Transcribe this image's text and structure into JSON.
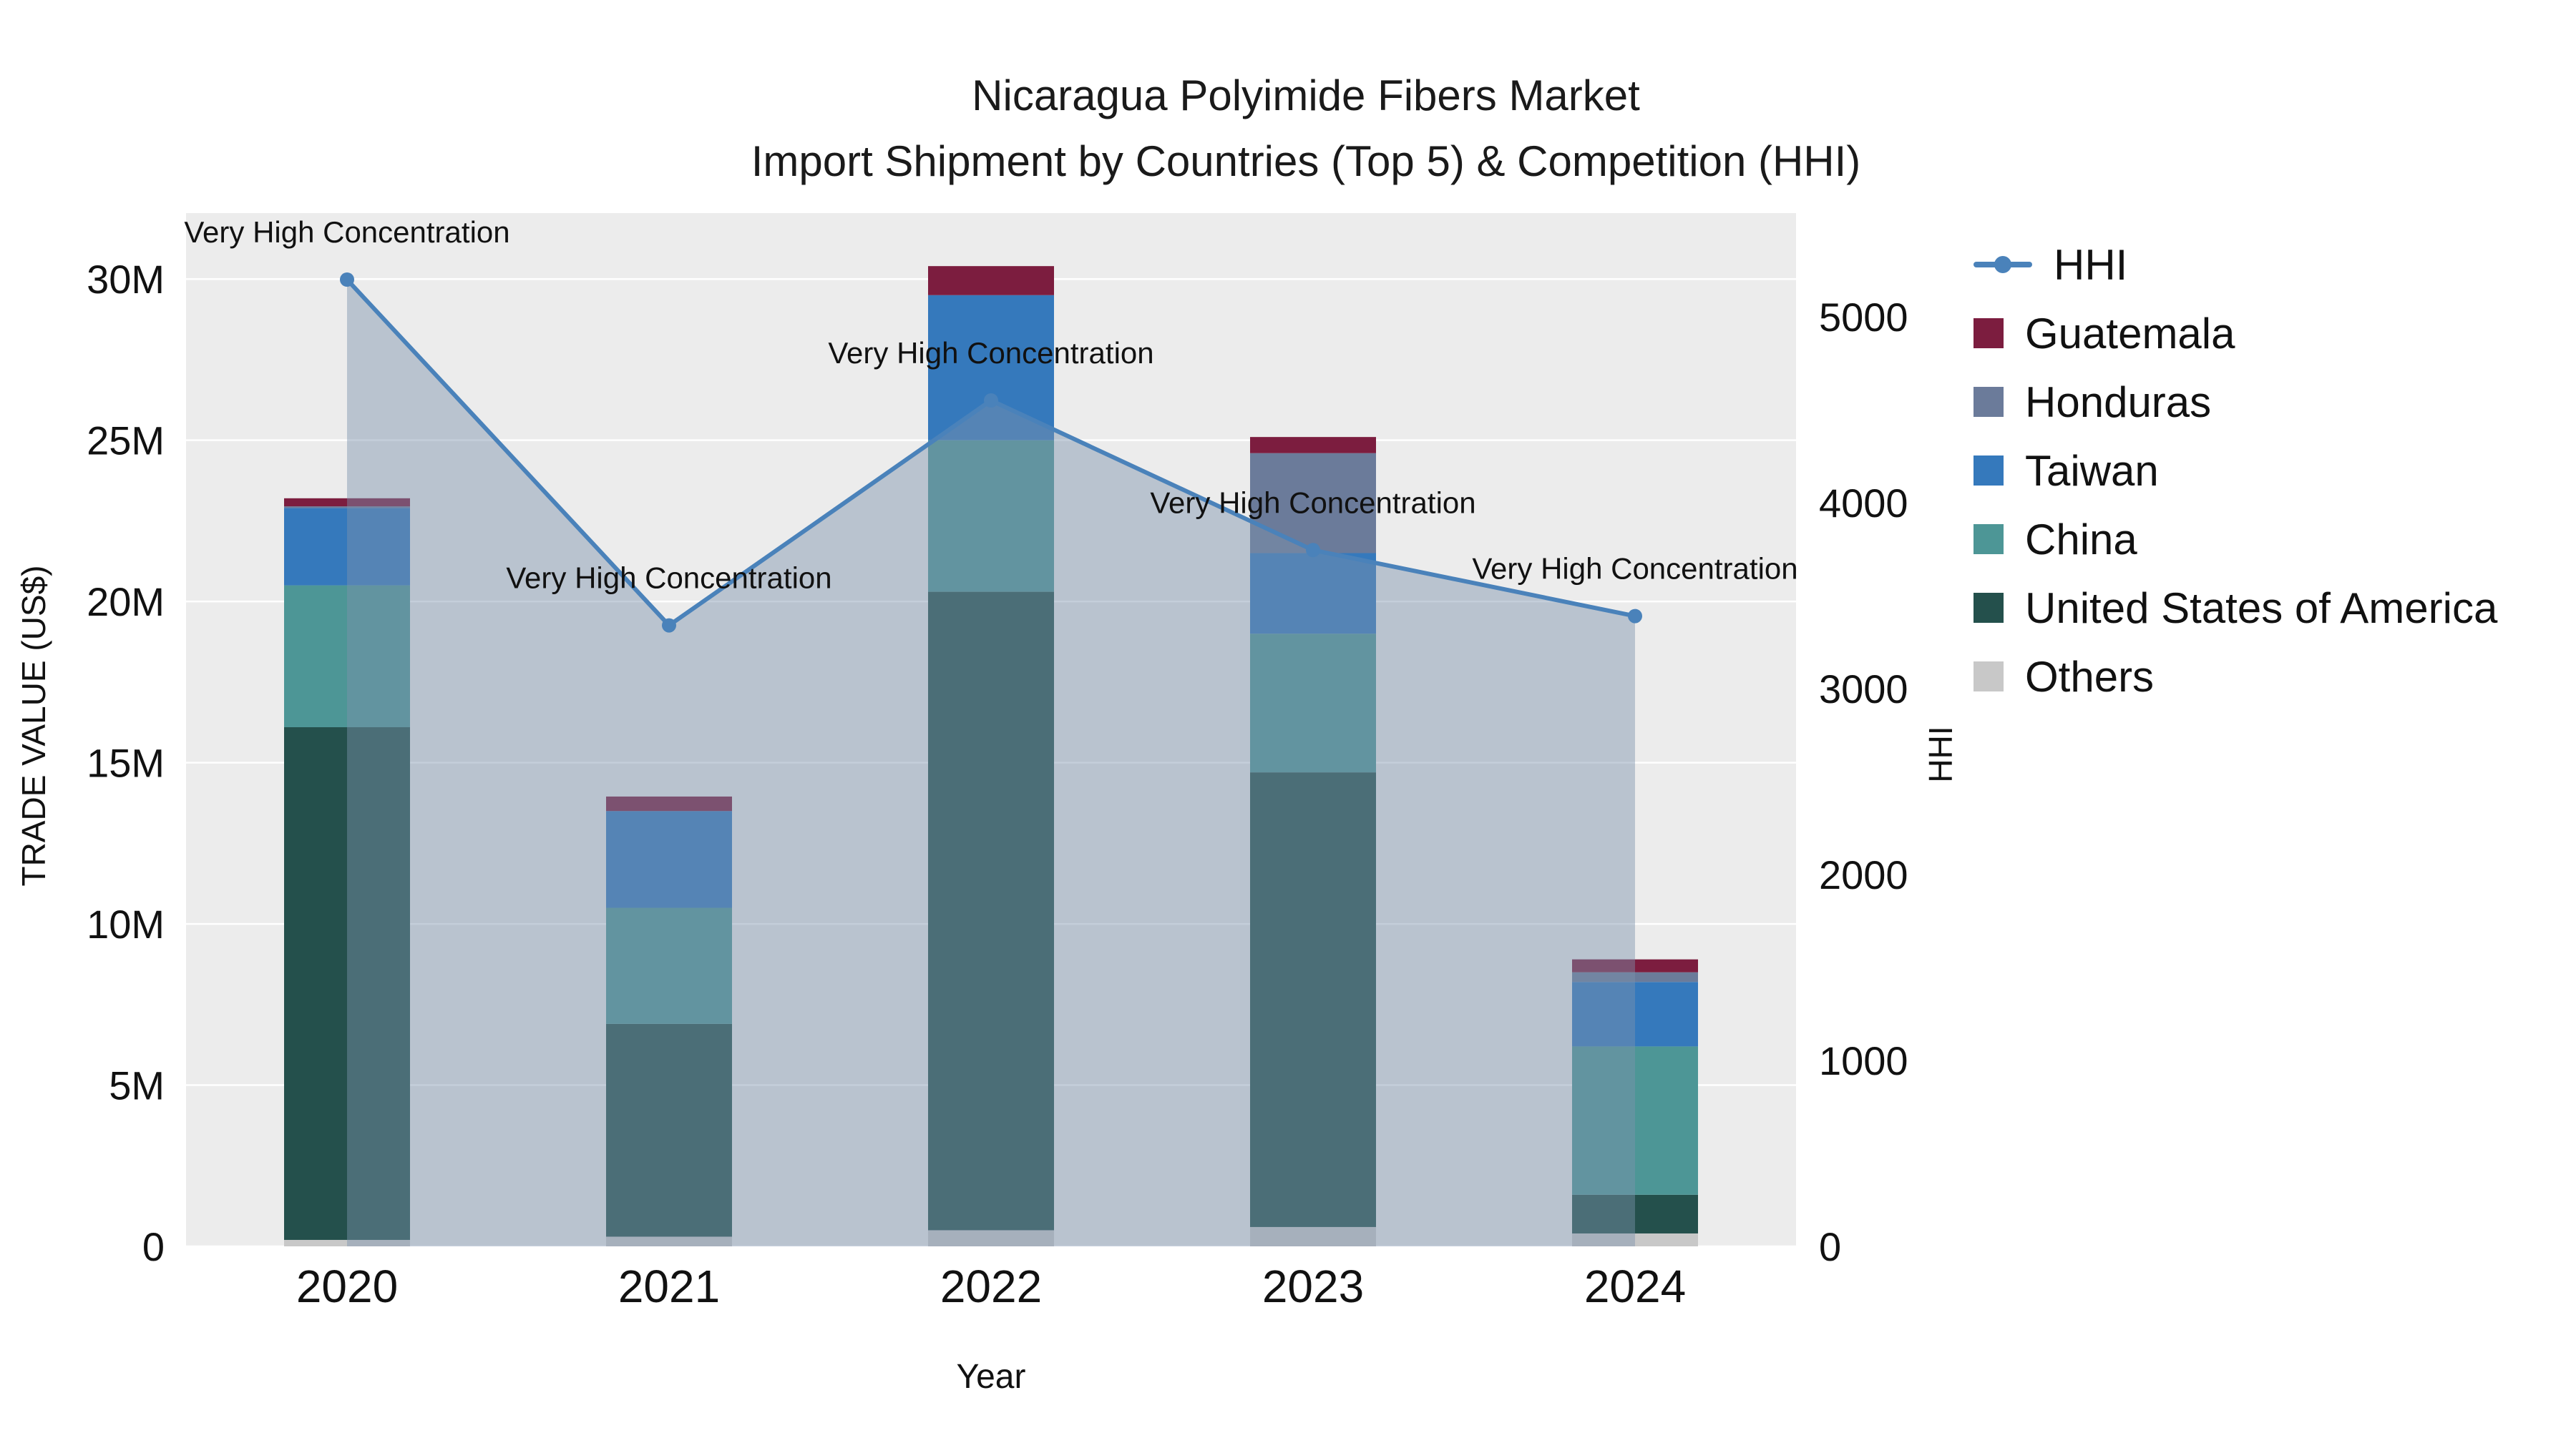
{
  "title": {
    "line1": "Nicaragua Polyimide Fibers Market",
    "line2": "Import Shipment by Countries (Top 5) & Competition (HHI)"
  },
  "axes": {
    "x_label": "Year",
    "y_left_label": "TRADE VALUE (US$)",
    "y_right_label": "HHI",
    "y_left_ticks": [
      {
        "v": 0,
        "label": "0"
      },
      {
        "v": 5,
        "label": "5M"
      },
      {
        "v": 10,
        "label": "10M"
      },
      {
        "v": 15,
        "label": "15M"
      },
      {
        "v": 20,
        "label": "20M"
      },
      {
        "v": 25,
        "label": "25M"
      },
      {
        "v": 30,
        "label": "30M"
      }
    ],
    "y_right_ticks": [
      {
        "v": 0,
        "label": "0"
      },
      {
        "v": 1000,
        "label": "1000"
      },
      {
        "v": 2000,
        "label": "2000"
      },
      {
        "v": 3000,
        "label": "3000"
      },
      {
        "v": 4000,
        "label": "4000"
      },
      {
        "v": 5000,
        "label": "5000"
      }
    ]
  },
  "legend": {
    "items": [
      {
        "label": "HHI",
        "marker": "line",
        "color": "#4a82ba"
      },
      {
        "label": "Guatemala",
        "marker": "square",
        "color": "#7c1d3f"
      },
      {
        "label": "Honduras",
        "marker": "square",
        "color": "#6b7b9a"
      },
      {
        "label": "Taiwan",
        "marker": "square",
        "color": "#3579bc"
      },
      {
        "label": "China",
        "marker": "square",
        "color": "#4d9696"
      },
      {
        "label": "United States of America",
        "marker": "square",
        "color": "#24504c"
      },
      {
        "label": "Others",
        "marker": "square",
        "color": "#c8c8c8"
      }
    ]
  },
  "chart_data": {
    "type": "bar",
    "subtype": "stacked-bars-with-hhi-line",
    "title": "Nicaragua Polyimide Fibers Market — Import Shipment by Countries (Top 5) & Competition (HHI)",
    "xlabel": "Year",
    "ylabel_left": "TRADE VALUE (US$)",
    "ylabel_right": "HHI",
    "categories": [
      "2020",
      "2021",
      "2022",
      "2023",
      "2024"
    ],
    "value_unit": "million US$",
    "stack_order_bottom_to_top": [
      "Others",
      "United States of America",
      "China",
      "Taiwan",
      "Honduras",
      "Guatemala"
    ],
    "series": [
      {
        "name": "Guatemala",
        "color": "#7c1d3f",
        "values": [
          0.25,
          0.45,
          0.9,
          0.5,
          0.4
        ]
      },
      {
        "name": "Honduras",
        "color": "#6b7b9a",
        "values": [
          0.05,
          0.0,
          0.0,
          3.1,
          0.3
        ]
      },
      {
        "name": "Taiwan",
        "color": "#3579bc",
        "values": [
          2.4,
          3.0,
          4.5,
          2.5,
          2.0
        ]
      },
      {
        "name": "China",
        "color": "#4d9696",
        "values": [
          4.4,
          3.6,
          4.7,
          4.3,
          4.6
        ]
      },
      {
        "name": "United States of America",
        "color": "#24504c",
        "values": [
          15.9,
          6.6,
          19.8,
          14.1,
          1.2
        ]
      },
      {
        "name": "Others",
        "color": "#c8c8c8",
        "values": [
          0.2,
          0.3,
          0.5,
          0.6,
          0.4
        ]
      }
    ],
    "bar_totals_m": [
      23.2,
      13.95,
      30.4,
      25.1,
      8.9
    ],
    "line_series": {
      "name": "HHI",
      "axis": "right",
      "color": "#4a82ba",
      "area_fill": "rgba(125,147,173,0.45)",
      "values": [
        5200,
        3340,
        4550,
        3745,
        3390
      ],
      "annotations": [
        "Very High Concentration",
        "Very High Concentration",
        "Very High Concentration",
        "Very High Concentration",
        "Very High Concentration"
      ]
    },
    "y_left_range_m": [
      0,
      32
    ],
    "y_right_range": [
      0,
      5550
    ],
    "grid": "horizontal-white-on-gray",
    "plot_background": "#ececec",
    "legend_position": "right"
  }
}
